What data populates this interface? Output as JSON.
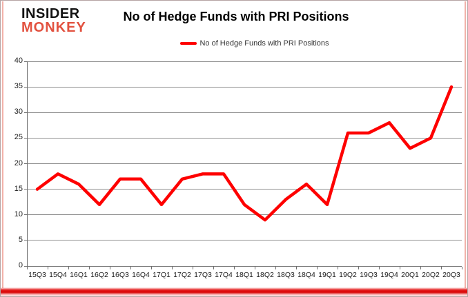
{
  "logo": {
    "line1": "INSIDER",
    "line2": "MONKEY"
  },
  "header": {
    "title": "No of Hedge Funds with PRI Positions"
  },
  "legend": {
    "label": "No of Hedge Funds with PRI Positions"
  },
  "colors": {
    "series_red": "#fe0000",
    "logo_red": "#e2513f",
    "gridline_gray": "#8e8e8e",
    "axis_gray": "#6e6e6e",
    "bottom_bar_red": "#d90404"
  },
  "chart_data": {
    "type": "line",
    "title": "No of Hedge Funds with PRI Positions",
    "xlabel": "",
    "ylabel": "",
    "categories": [
      "15Q3",
      "15Q4",
      "16Q1",
      "16Q2",
      "16Q3",
      "16Q4",
      "17Q1",
      "17Q2",
      "17Q3",
      "17Q4",
      "18Q1",
      "18Q2",
      "18Q3",
      "18Q4",
      "19Q1",
      "19Q2",
      "19Q3",
      "19Q4",
      "20Q1",
      "20Q2",
      "20Q3"
    ],
    "series": [
      {
        "name": "No of Hedge Funds with PRI Positions",
        "color": "#fe0000",
        "values": [
          15,
          18,
          16,
          12,
          17,
          17,
          12,
          17,
          18,
          18,
          12,
          9,
          13,
          16,
          12,
          26,
          26,
          28,
          23,
          25,
          35
        ]
      }
    ],
    "ylim": [
      0,
      40
    ],
    "yticks": [
      0,
      5,
      10,
      15,
      20,
      25,
      30,
      35,
      40
    ],
    "grid": true,
    "legend_position": "top-center"
  }
}
